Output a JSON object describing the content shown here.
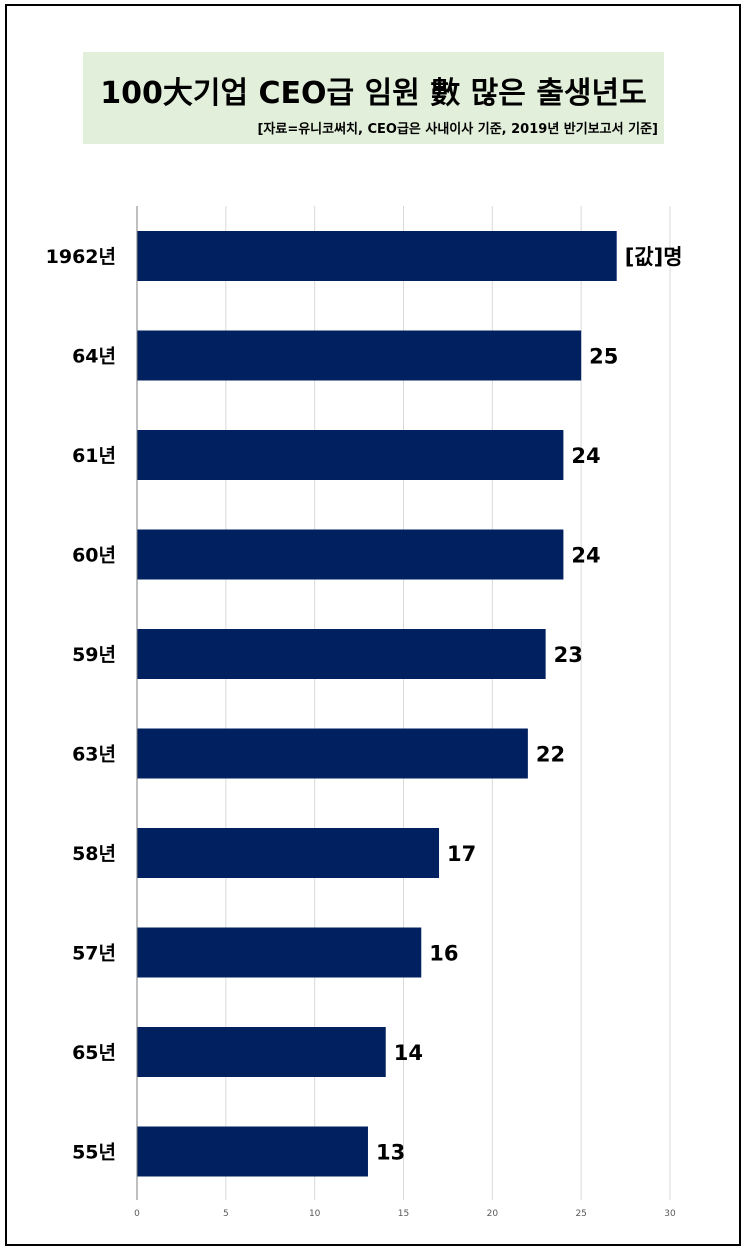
{
  "chart_data": {
    "type": "bar",
    "orientation": "horizontal",
    "title": "100大기업 CEO급 임원 數 많은 출생년도",
    "subtitle": "[자료=유니코써치, CEO급은 사내이사 기준, 2019년 반기보고서 기준]",
    "categories": [
      "1962년",
      "64년",
      "61년",
      "60년",
      "59년",
      "63년",
      "58년",
      "57년",
      "65년",
      "55년"
    ],
    "values": [
      27,
      25,
      24,
      24,
      23,
      22,
      17,
      16,
      14,
      13
    ],
    "data_labels": [
      "[값]명",
      "25",
      "24",
      "24",
      "23",
      "22",
      "17",
      "16",
      "14",
      "13"
    ],
    "xlim": [
      0,
      30
    ],
    "x_ticks": [
      0,
      5,
      10,
      15,
      20,
      25,
      30
    ],
    "grid": true,
    "legend": "none",
    "bar_color": "#002060",
    "title_background": "#e2efda"
  }
}
